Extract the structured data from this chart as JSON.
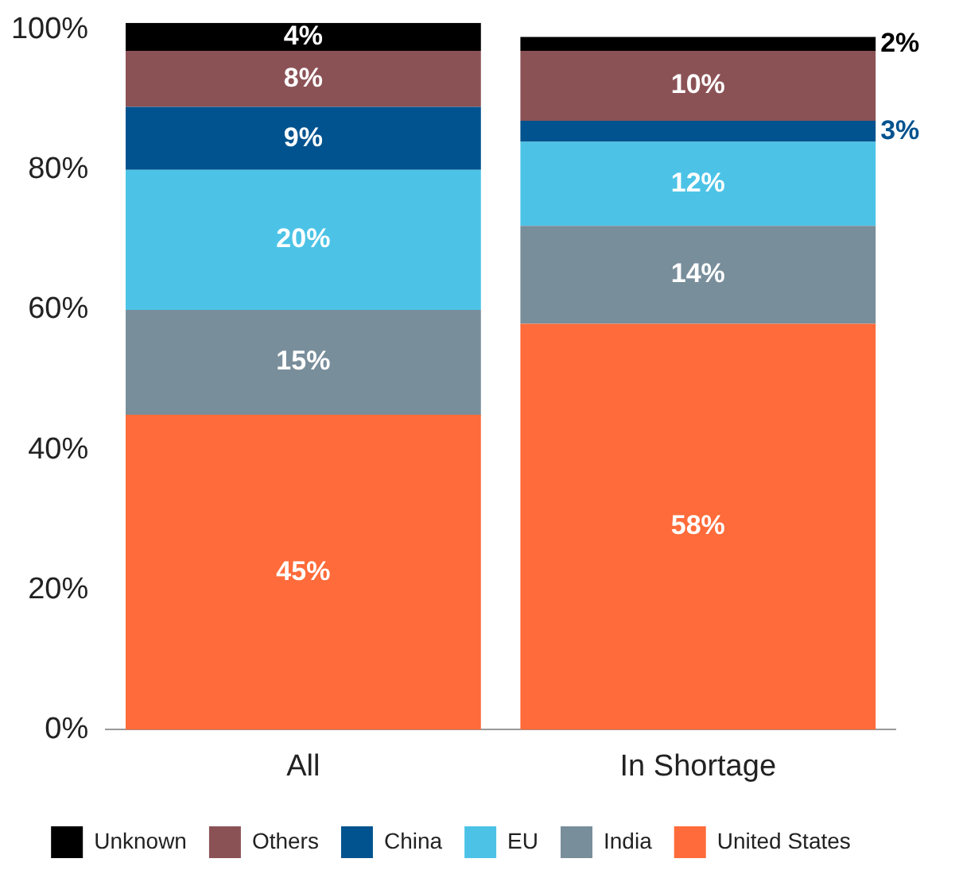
{
  "chart_data": {
    "type": "bar",
    "stacked": true,
    "categories": [
      "All",
      "In Shortage"
    ],
    "series": [
      {
        "name": "United States",
        "color": "#ff6b3a",
        "values": [
          45,
          58
        ],
        "value_labels": [
          "45%",
          "58%"
        ]
      },
      {
        "name": "India",
        "color": "#798e9b",
        "values": [
          15,
          14
        ],
        "value_labels": [
          "15%",
          "14%"
        ]
      },
      {
        "name": "EU",
        "color": "#4cc3e6",
        "values": [
          20,
          12
        ],
        "value_labels": [
          "20%",
          "12%"
        ]
      },
      {
        "name": "China",
        "color": "#00538f",
        "values": [
          9,
          3
        ],
        "value_labels": [
          "9%",
          "3%"
        ]
      },
      {
        "name": "Others",
        "color": "#8b5256",
        "values": [
          8,
          10
        ],
        "value_labels": [
          "8%",
          "10%"
        ]
      },
      {
        "name": "Unknown",
        "color": "#000000",
        "values": [
          4,
          2
        ],
        "value_labels": [
          "4%",
          "2%"
        ]
      }
    ],
    "ylim": [
      0,
      101
    ],
    "yticks": [
      {
        "value": 0,
        "label": "0%"
      },
      {
        "value": 20,
        "label": "20%"
      },
      {
        "value": 40,
        "label": "40%"
      },
      {
        "value": 60,
        "label": "60%"
      },
      {
        "value": 80,
        "label": "80%"
      },
      {
        "value": 100,
        "label": "100%"
      }
    ],
    "grid": false,
    "legend": "bottom"
  }
}
